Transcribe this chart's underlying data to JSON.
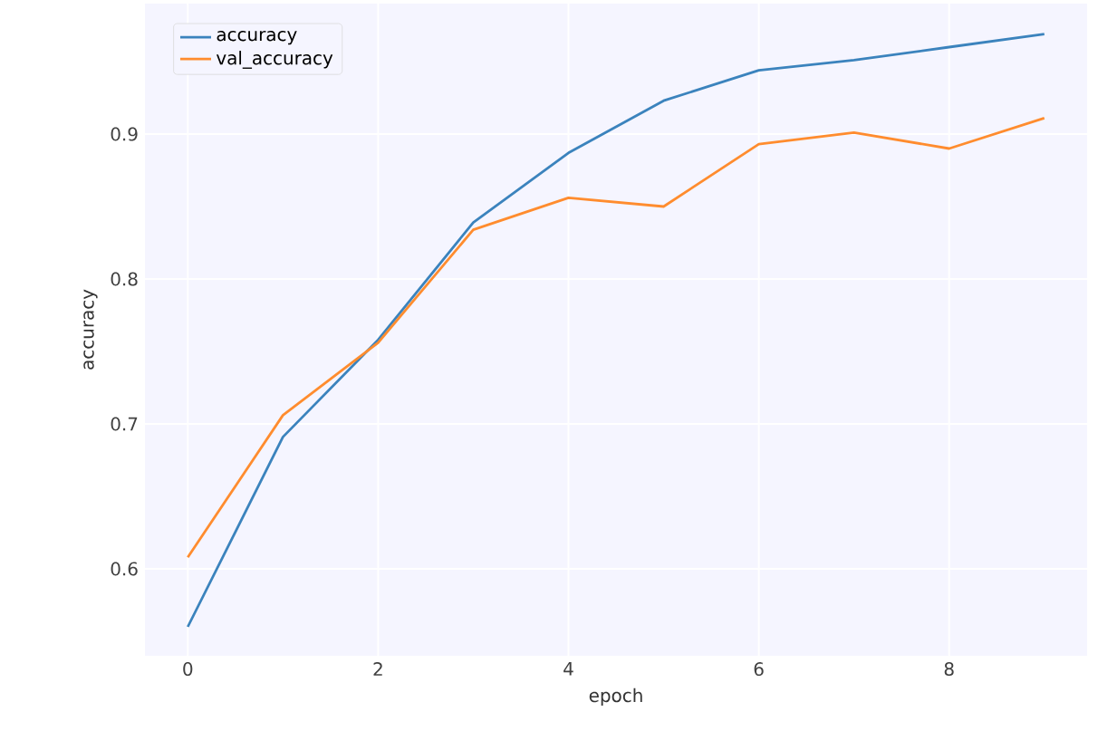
{
  "chart_data": {
    "type": "line",
    "xlabel": "epoch",
    "ylabel": "accuracy",
    "x": [
      0,
      1,
      2,
      3,
      4,
      5,
      6,
      7,
      8,
      9
    ],
    "series": [
      {
        "name": "accuracy",
        "color": "#3b83bd",
        "values": [
          0.56,
          0.691,
          0.758,
          0.839,
          0.887,
          0.923,
          0.944,
          0.951,
          0.96,
          0.969
        ]
      },
      {
        "name": "val_accuracy",
        "color": "#ff8c2e",
        "values": [
          0.608,
          0.706,
          0.756,
          0.834,
          0.856,
          0.85,
          0.893,
          0.901,
          0.89,
          0.911
        ]
      }
    ],
    "xlim": [
      -0.45,
      9.45
    ],
    "ylim": [
      0.54,
      0.99
    ],
    "xticks": [
      0,
      2,
      4,
      6,
      8
    ],
    "yticks": [
      0.6,
      0.7,
      0.8,
      0.9
    ],
    "grid": true,
    "legend": "top left",
    "marker": "none",
    "line_style": "solid"
  }
}
